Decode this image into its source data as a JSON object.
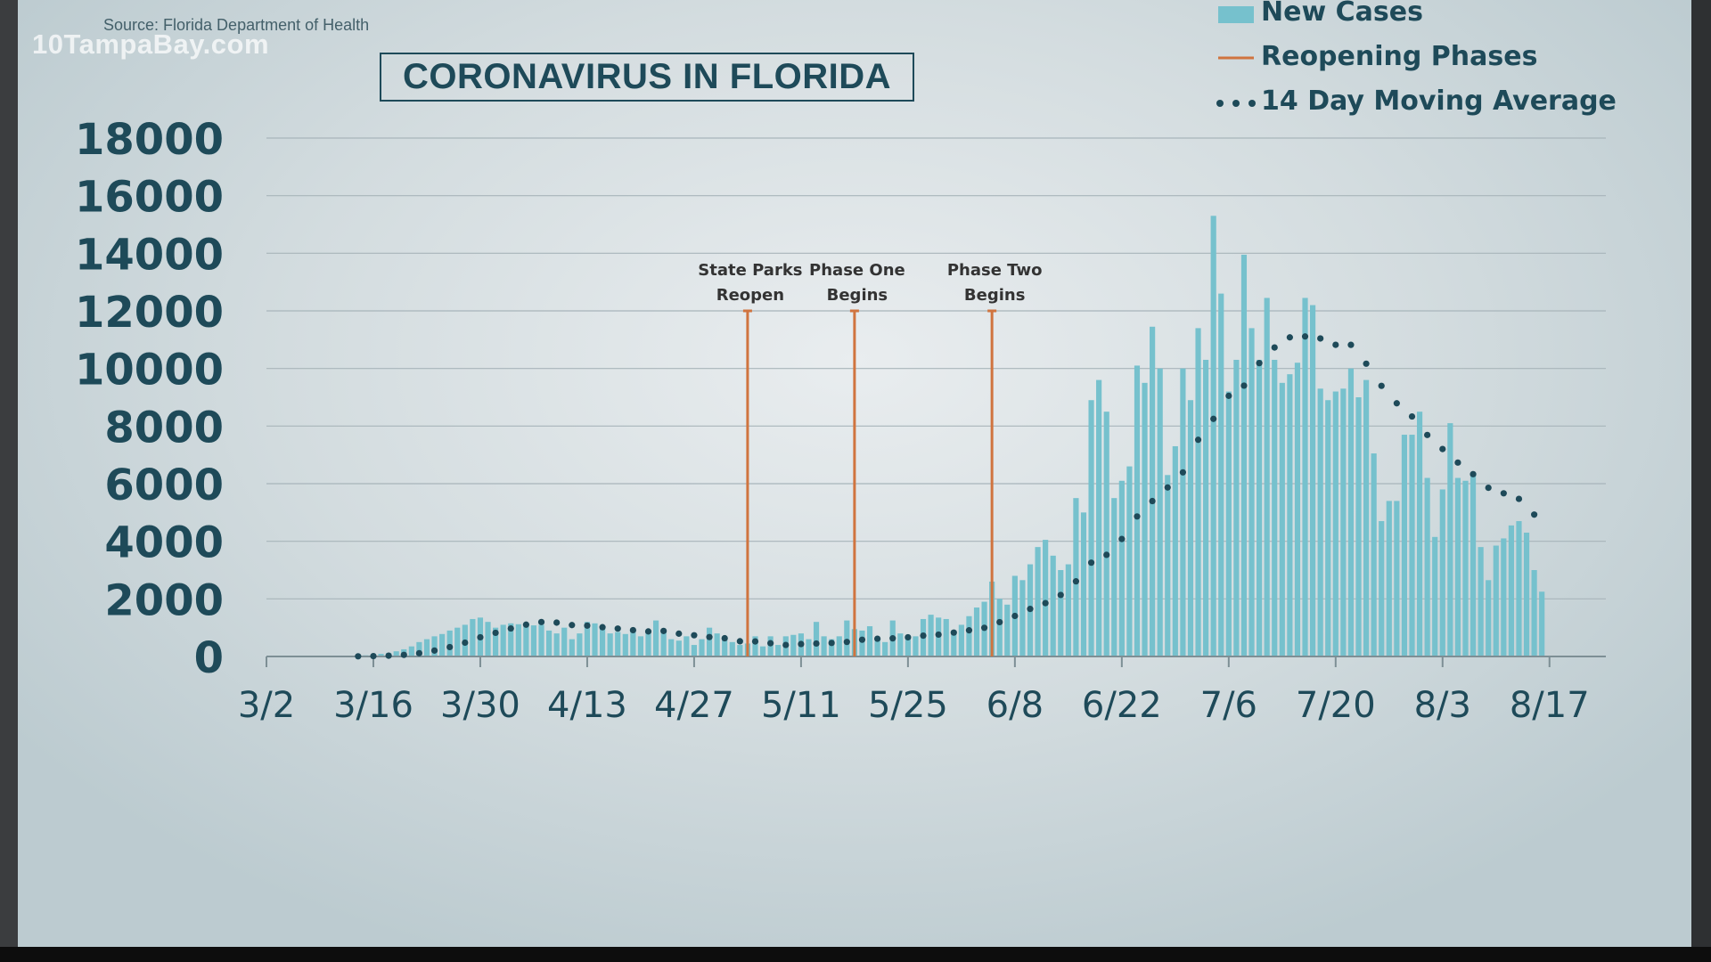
{
  "source_text": "Source: Florida Department of Health",
  "watermark": "10TampaBay.com",
  "colors": {
    "bars": "#76c1cd",
    "phase_lines": "#d0743f",
    "moving_average": "#1e4a59",
    "text": "#1e4a59",
    "grid": "#a8b5ba"
  },
  "chart_data": {
    "type": "bar",
    "title": "CORONAVIRUS IN FLORIDA",
    "xlabel": "",
    "ylabel": "",
    "ylim": [
      0,
      18000
    ],
    "yticks": [
      "0",
      "2000",
      "4000",
      "6000",
      "8000",
      "10000",
      "12000",
      "14000",
      "16000",
      "18000"
    ],
    "x_start": "3/2",
    "x_tick_labels": [
      "3/2",
      "3/16",
      "3/30",
      "4/13",
      "4/27",
      "5/11",
      "5/25",
      "6/8",
      "6/22",
      "7/6",
      "7/20",
      "8/3",
      "8/17"
    ],
    "grid": true,
    "legend_position": "top-right",
    "legend": [
      "New Cases",
      "Reopening Phases",
      "14 Day Moving Average"
    ],
    "series": [
      {
        "name": "New Cases",
        "type": "bar",
        "values": [
          0,
          0,
          0,
          0,
          0,
          0,
          0,
          0,
          1,
          2,
          5,
          10,
          30,
          40,
          60,
          90,
          120,
          180,
          250,
          350,
          500,
          600,
          700,
          780,
          900,
          1000,
          1100,
          1300,
          1350,
          1200,
          1000,
          1100,
          1150,
          1120,
          1050,
          1080,
          1100,
          900,
          800,
          1000,
          600,
          800,
          1200,
          1150,
          1000,
          800,
          850,
          780,
          850,
          700,
          850,
          1250,
          900,
          600,
          550,
          700,
          400,
          600,
          1000,
          800,
          700,
          500,
          400,
          450,
          700,
          350,
          700,
          400,
          700,
          750,
          800,
          600,
          1200,
          700,
          600,
          700,
          1250,
          950,
          900,
          1050,
          600,
          500,
          1250,
          800,
          700,
          700,
          1300,
          1450,
          1350,
          1300,
          900,
          1100,
          1400,
          1700,
          1900,
          2600,
          2000,
          1800,
          2800,
          2650,
          3200,
          3800,
          4050,
          3500,
          3000,
          3200,
          5500,
          5000,
          8900,
          9600,
          8500,
          5500,
          6100,
          6600,
          10100,
          9500,
          11450,
          10000,
          6300,
          7300,
          10000,
          8900,
          11400,
          10300,
          15300,
          12600,
          9200,
          10300,
          13950,
          11400,
          10300,
          12450,
          10300,
          9500,
          9800,
          10200,
          12450,
          12200,
          9300,
          8900,
          9200,
          9300,
          10000,
          9000,
          9600,
          7050,
          4700,
          5400,
          5400,
          7700,
          7700,
          8500,
          6200,
          4150,
          5800,
          8100,
          6200,
          6100,
          6350,
          3800,
          2650,
          3850,
          4100,
          4550,
          4700,
          4300,
          3000,
          2250
        ]
      },
      {
        "name": "14 Day Moving Average",
        "type": "line",
        "values": [
          0,
          0,
          0,
          0,
          0,
          0,
          0,
          0,
          0,
          0,
          0,
          0,
          6,
          9,
          13,
          19,
          27,
          39,
          56,
          81,
          114,
          156,
          206,
          262,
          327,
          400,
          479,
          571,
          667,
          751,
          822,
          897,
          972,
          1044,
          1105,
          1154,
          1196,
          1205,
          1176,
          1131,
          1090,
          1064,
          1072,
          1047,
          1016,
          987,
          968,
          932,
          914,
          882,
          870,
          880,
          886,
          835,
          793,
          770,
          737,
          681,
          674,
          650,
          633,
          570,
          529,
          521,
          523,
          493,
          460,
          414,
          400,
          415,
          432,
          434,
          450,
          491,
          469,
          479,
          504,
          524,
          582,
          613,
          616,
          631,
          629,
          623,
          666,
          693,
          724,
          752,
          760,
          817,
          829,
          859,
          909,
          953,
          996,
          1096,
          1193,
          1291,
          1407,
          1539,
          1651,
          1738,
          1852,
          1954,
          2136,
          2300,
          2609,
          2944,
          3257,
          3369,
          3529,
          3678,
          4079,
          4472,
          4862,
          5224,
          5396,
          5519,
          5869,
          6109,
          6393,
          6758,
          7523,
          8026,
          8250,
          8580,
          9050,
          9278,
          9404,
          9850,
          10186,
          10350,
          10729,
          10848,
          11080,
          11321,
          11111,
          11082,
          11042,
          10994,
          10822,
          10843,
          10820,
          10592,
          10166,
          9764,
          9396,
          9106,
          8791,
          8574,
          8333,
          7961,
          7691,
          7491,
          7203,
          6996,
          6732,
          6533,
          6330,
          6039,
          5858,
          5741,
          5666,
          5632,
          5472,
          5098,
          4926
        ]
      }
    ],
    "phases": [
      {
        "label_line1": "State Parks",
        "label_line2": "Reopen",
        "x": "5/4",
        "top_value": 12000
      },
      {
        "label_line1": "Phase One",
        "label_line2": "Begins",
        "x": "5/18",
        "top_value": 12000
      },
      {
        "label_line1": "Phase Two",
        "label_line2": "Begins",
        "x": "6/5",
        "top_value": 12000
      }
    ]
  }
}
